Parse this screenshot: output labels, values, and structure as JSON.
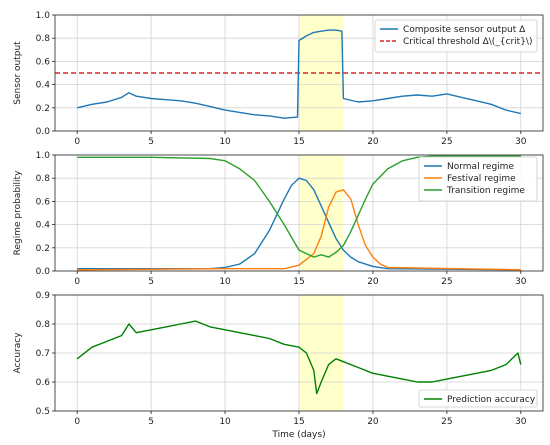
{
  "chart_data": [
    {
      "type": "line",
      "ylabel": "Sensor output",
      "xlim": [
        -1.5,
        31.5
      ],
      "ylim": [
        0.0,
        1.0
      ],
      "xticks": [
        0,
        5,
        10,
        15,
        20,
        25,
        30
      ],
      "yticks": [
        0.0,
        0.2,
        0.4,
        0.6,
        0.8,
        1.0
      ],
      "ytick_labels": [
        "0.0",
        "0.2",
        "0.4",
        "0.6",
        "0.8",
        "1.0"
      ],
      "grid": true,
      "legend": "top-right",
      "highlight": {
        "x": [
          15,
          18
        ],
        "color": "#ffffcc"
      },
      "series": [
        {
          "name": "Composite sensor output Δ",
          "color": "#1f77b4",
          "x": [
            0,
            1,
            2,
            3,
            3.5,
            4,
            5,
            6,
            7,
            8,
            9,
            10,
            11,
            12,
            13,
            14,
            14.9,
            15.0,
            15.5,
            16,
            16.5,
            17,
            17.5,
            17.9,
            18.0,
            19,
            20,
            21,
            22,
            23,
            24,
            25,
            26,
            27,
            28,
            29,
            30
          ],
          "values": [
            0.2,
            0.23,
            0.25,
            0.29,
            0.33,
            0.3,
            0.28,
            0.27,
            0.26,
            0.24,
            0.21,
            0.18,
            0.16,
            0.14,
            0.13,
            0.11,
            0.12,
            0.78,
            0.82,
            0.85,
            0.86,
            0.87,
            0.87,
            0.86,
            0.28,
            0.25,
            0.26,
            0.28,
            0.3,
            0.31,
            0.3,
            0.32,
            0.29,
            0.26,
            0.23,
            0.18,
            0.15
          ]
        }
      ],
      "reference_lines": [
        {
          "name": "Critical threshold Δ\\(_{crit}\\)",
          "y": 0.5,
          "color": "#d62728",
          "style": "dashed"
        }
      ]
    },
    {
      "type": "line",
      "ylabel": "Regime probability",
      "xlim": [
        -1.5,
        31.5
      ],
      "ylim": [
        0.0,
        1.0
      ],
      "xticks": [
        0,
        5,
        10,
        15,
        20,
        25,
        30
      ],
      "yticks": [
        0.0,
        0.2,
        0.4,
        0.6,
        0.8,
        1.0
      ],
      "ytick_labels": [
        "0.0",
        "0.2",
        "0.4",
        "0.6",
        "0.8",
        "1.0"
      ],
      "grid": true,
      "legend": "right",
      "highlight": {
        "x": [
          15,
          18
        ],
        "color": "#ffffcc"
      },
      "series": [
        {
          "name": "Normal regime",
          "color": "#1f77b4",
          "x": [
            0,
            5,
            9,
            10,
            11,
            12,
            13,
            14,
            14.5,
            15,
            15.5,
            16,
            16.5,
            17,
            17.5,
            18,
            18.5,
            19,
            20,
            21,
            30
          ],
          "values": [
            0.02,
            0.02,
            0.02,
            0.03,
            0.06,
            0.15,
            0.35,
            0.62,
            0.74,
            0.8,
            0.78,
            0.7,
            0.56,
            0.42,
            0.28,
            0.18,
            0.12,
            0.08,
            0.04,
            0.02,
            0.01
          ]
        },
        {
          "name": "Festival regime",
          "color": "#ff7f0e",
          "x": [
            0,
            10,
            14,
            15,
            16,
            16.5,
            17,
            17.5,
            18,
            18.5,
            19,
            19.5,
            20,
            20.5,
            21,
            30
          ],
          "values": [
            0.01,
            0.02,
            0.02,
            0.05,
            0.15,
            0.3,
            0.55,
            0.68,
            0.7,
            0.62,
            0.4,
            0.22,
            0.12,
            0.06,
            0.03,
            0.01
          ]
        },
        {
          "name": "Transition regime",
          "color": "#2ca02c",
          "x": [
            0,
            5,
            9,
            10,
            11,
            12,
            13,
            14,
            15,
            15.5,
            16,
            16.5,
            17,
            17.5,
            18,
            18.5,
            19,
            19.5,
            20,
            21,
            22,
            23,
            24,
            30
          ],
          "values": [
            0.98,
            0.98,
            0.97,
            0.95,
            0.88,
            0.78,
            0.6,
            0.4,
            0.18,
            0.15,
            0.12,
            0.14,
            0.12,
            0.16,
            0.22,
            0.34,
            0.48,
            0.62,
            0.75,
            0.88,
            0.95,
            0.98,
            0.99,
            0.99
          ]
        }
      ]
    },
    {
      "type": "line",
      "xlabel": "Time (days)",
      "ylabel": "Accuracy",
      "xlim": [
        -1.5,
        31.5
      ],
      "ylim": [
        0.5,
        0.9
      ],
      "xticks": [
        0,
        5,
        10,
        15,
        20,
        25,
        30
      ],
      "yticks": [
        0.5,
        0.6,
        0.7,
        0.8,
        0.9
      ],
      "ytick_labels": [
        "0.5",
        "0.6",
        "0.7",
        "0.8",
        "0.9"
      ],
      "grid": true,
      "legend": "bottom-right",
      "highlight": {
        "x": [
          15,
          18
        ],
        "color": "#ffffcc"
      },
      "series": [
        {
          "name": "Prediction accuracy",
          "color": "#008000",
          "x": [
            0,
            1,
            2,
            3,
            3.5,
            4,
            5,
            6,
            7,
            8,
            9,
            10,
            11,
            12,
            13,
            14,
            15,
            15.5,
            16,
            16.2,
            16.5,
            17,
            17.5,
            18,
            19,
            20,
            21,
            22,
            23,
            24,
            25,
            26,
            27,
            28,
            29,
            29.8,
            30
          ],
          "values": [
            0.68,
            0.72,
            0.74,
            0.76,
            0.8,
            0.77,
            0.78,
            0.79,
            0.8,
            0.81,
            0.79,
            0.78,
            0.77,
            0.76,
            0.75,
            0.73,
            0.72,
            0.7,
            0.64,
            0.56,
            0.6,
            0.66,
            0.68,
            0.67,
            0.65,
            0.63,
            0.62,
            0.61,
            0.6,
            0.6,
            0.61,
            0.62,
            0.63,
            0.64,
            0.66,
            0.7,
            0.66
          ]
        }
      ]
    }
  ]
}
